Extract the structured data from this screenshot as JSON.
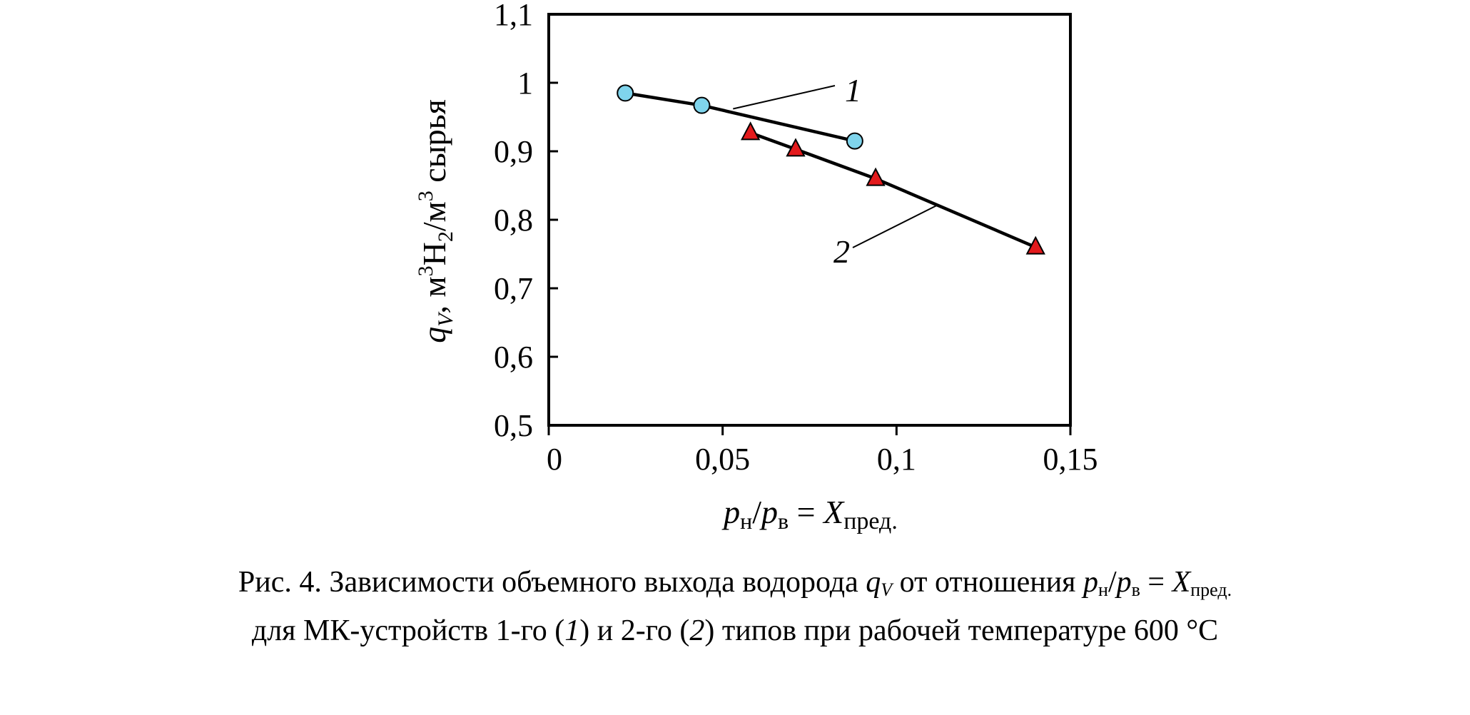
{
  "chart_data": {
    "type": "scatter",
    "xlim": [
      0,
      0.15
    ],
    "ylim": [
      0.5,
      1.1
    ],
    "x_ticks": [
      "0",
      "0,05",
      "0,1",
      "0,15"
    ],
    "y_ticks": [
      "0,5",
      "0,6",
      "0,7",
      "0,8",
      "0,9",
      "1",
      "1,1"
    ],
    "x_tick_values": [
      0,
      0.05,
      0.1,
      0.15
    ],
    "y_tick_values": [
      0.5,
      0.6,
      0.7,
      0.8,
      0.9,
      1.0,
      1.1
    ],
    "grid": false,
    "xlabel": {
      "p": "p",
      "sub_n": "н",
      "slash": "/",
      "sub_v": "в",
      "eq": " = ",
      "X": "X",
      "sub_pred": "пред."
    },
    "ylabel": {
      "q": "q",
      "sub_V": "V",
      "comma": ", м",
      "sup3a": "3",
      "H": "H",
      "sub2": "2",
      "slash_m": "/м",
      "sup3b": "3",
      "rest": " сырья"
    },
    "series": [
      {
        "name": "1",
        "marker": "circle",
        "marker_color": "#7fd4ec",
        "line_color": "#000000",
        "x": [
          0.022,
          0.044,
          0.088
        ],
        "y": [
          0.985,
          0.967,
          0.915
        ]
      },
      {
        "name": "2",
        "marker": "triangle",
        "marker_color": "#e31a1c",
        "line_color": "#000000",
        "x": [
          0.058,
          0.071,
          0.094,
          0.14
        ],
        "y": [
          0.927,
          0.903,
          0.86,
          0.76
        ]
      }
    ]
  },
  "caption": {
    "line1": {
      "prefix": "Рис. 4. Зависимости объемного выхода водорода ",
      "q": "q",
      "sub_V": "V",
      "middle": " от отношения ",
      "p1": "p",
      "sub_n": "н",
      "slash": "/",
      "p2": "p",
      "sub_v": "в",
      "eq": " = ",
      "X": "X",
      "sub_pred": "пред."
    },
    "line2": {
      "prefix": "для МК-устройств 1-го (",
      "n1": "1",
      "mid": ") и 2-го (",
      "n2": "2",
      "suffix": ") типов при рабочей температуре 600 °С"
    }
  }
}
